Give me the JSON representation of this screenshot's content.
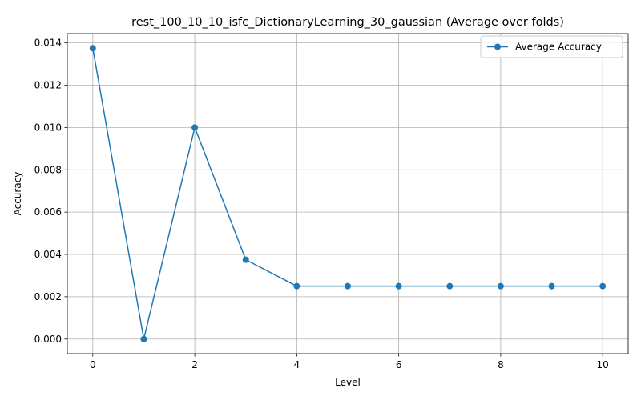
{
  "chart_data": {
    "type": "line",
    "title": "rest_100_10_10_isfc_DictionaryLearning_30_gaussian (Average over folds)",
    "xlabel": "Level",
    "ylabel": "Accuracy",
    "x": [
      0,
      1,
      2,
      3,
      4,
      5,
      6,
      7,
      8,
      9,
      10
    ],
    "xlim": [
      -0.5,
      10.5
    ],
    "ylim": [
      -0.00069,
      0.01444
    ],
    "xticks": [
      0,
      2,
      4,
      6,
      8,
      10
    ],
    "xtick_labels": [
      "0",
      "2",
      "4",
      "6",
      "8",
      "10"
    ],
    "yticks": [
      0.0,
      0.002,
      0.004,
      0.006,
      0.008,
      0.01,
      0.012,
      0.014
    ],
    "ytick_labels": [
      "0.000",
      "0.002",
      "0.004",
      "0.006",
      "0.008",
      "0.010",
      "0.012",
      "0.014"
    ],
    "grid": true,
    "legend_position": "top-right",
    "series": [
      {
        "name": "Average Accuracy",
        "color": "#1f77b4",
        "marker": "circle",
        "values": [
          0.01375,
          0.0,
          0.01,
          0.00375,
          0.0025,
          0.0025,
          0.0025,
          0.0025,
          0.0025,
          0.0025,
          0.0025
        ]
      }
    ]
  }
}
